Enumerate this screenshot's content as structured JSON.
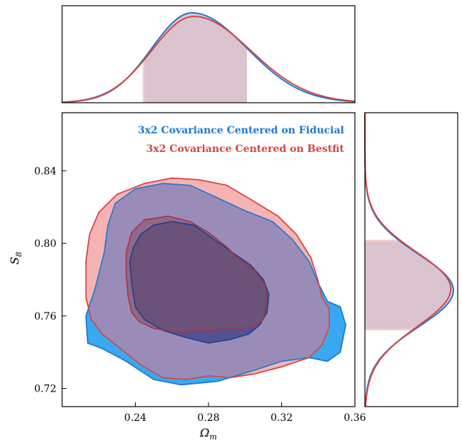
{
  "colors": {
    "fiducial": "#1f78d1",
    "fiducial_fill": "#3aa8f0",
    "bestfit": "#d64545",
    "bestfit_fill": "#f4a6a6",
    "overlap_outer": "#9a8cb8",
    "overlap_inner": "#6b5278",
    "marginal_band": "#d7c2d0"
  },
  "chart_data": [
    {
      "type": "line",
      "panel": "top-marginal",
      "xlim": [
        0.2,
        0.36
      ],
      "series": [
        {
          "name": "3x2 Covariance Centered on Fiducial",
          "peak_x": 0.271,
          "sigma_left": 0.022,
          "sigma_right": 0.03,
          "peak": 1.0,
          "band": [
            0.245,
            0.301
          ]
        },
        {
          "name": "3x2 Covariance Centered on Bestfit",
          "peak_x": 0.272,
          "sigma_left": 0.023,
          "sigma_right": 0.031,
          "peak": 0.96,
          "band": [
            0.244,
            0.301
          ]
        }
      ]
    },
    {
      "type": "scatter",
      "panel": "joint-contours",
      "xlabel": "Ω",
      "xlabel_sub": "m",
      "ylabel": "S",
      "ylabel_sub": "8",
      "xlim": [
        0.2,
        0.36
      ],
      "ylim": [
        0.71,
        0.872
      ],
      "xticks": [
        "0.24",
        "0.28",
        "0.32",
        "0.36"
      ],
      "xtick_values": [
        0.24,
        0.28,
        0.32,
        0.36
      ],
      "yticks": [
        "0.72",
        "0.76",
        "0.80",
        "0.84"
      ],
      "ytick_values": [
        0.72,
        0.76,
        0.8,
        0.84
      ],
      "legend_position": "top-right",
      "legend": [
        {
          "label": "3x2 Covariance Centered on Fiducial",
          "series": "fiducial"
        },
        {
          "label": "3x2 Covariance Centered on Bestfit",
          "series": "bestfit"
        }
      ],
      "contours": {
        "fiducial": {
          "outer": [
            [
              0.214,
              0.745
            ],
            [
              0.213,
              0.76
            ],
            [
              0.218,
              0.775
            ],
            [
              0.223,
              0.795
            ],
            [
              0.225,
              0.81
            ],
            [
              0.229,
              0.822
            ],
            [
              0.24,
              0.83
            ],
            [
              0.255,
              0.833
            ],
            [
              0.27,
              0.832
            ],
            [
              0.285,
              0.825
            ],
            [
              0.3,
              0.818
            ],
            [
              0.315,
              0.812
            ],
            [
              0.326,
              0.802
            ],
            [
              0.335,
              0.79
            ],
            [
              0.34,
              0.778
            ],
            [
              0.345,
              0.768
            ],
            [
              0.352,
              0.765
            ],
            [
              0.355,
              0.755
            ],
            [
              0.352,
              0.74
            ],
            [
              0.345,
              0.735
            ],
            [
              0.335,
              0.737
            ],
            [
              0.32,
              0.735
            ],
            [
              0.305,
              0.73
            ],
            [
              0.285,
              0.724
            ],
            [
              0.265,
              0.722
            ],
            [
              0.25,
              0.725
            ],
            [
              0.235,
              0.735
            ],
            [
              0.222,
              0.742
            ]
          ],
          "inner": [
            [
              0.237,
              0.79
            ],
            [
              0.238,
              0.778
            ],
            [
              0.24,
              0.765
            ],
            [
              0.245,
              0.758
            ],
            [
              0.255,
              0.752
            ],
            [
              0.268,
              0.748
            ],
            [
              0.28,
              0.745
            ],
            [
              0.292,
              0.747
            ],
            [
              0.302,
              0.75
            ],
            [
              0.308,
              0.755
            ],
            [
              0.312,
              0.762
            ],
            [
              0.313,
              0.772
            ],
            [
              0.31,
              0.78
            ],
            [
              0.303,
              0.788
            ],
            [
              0.293,
              0.795
            ],
            [
              0.282,
              0.803
            ],
            [
              0.272,
              0.81
            ],
            [
              0.26,
              0.812
            ],
            [
              0.25,
              0.81
            ],
            [
              0.243,
              0.805
            ],
            [
              0.239,
              0.798
            ]
          ]
        },
        "bestfit": {
          "outer": [
            [
              0.213,
              0.77
            ],
            [
              0.213,
              0.79
            ],
            [
              0.215,
              0.805
            ],
            [
              0.22,
              0.817
            ],
            [
              0.23,
              0.827
            ],
            [
              0.245,
              0.833
            ],
            [
              0.26,
              0.836
            ],
            [
              0.275,
              0.835
            ],
            [
              0.29,
              0.832
            ],
            [
              0.305,
              0.823
            ],
            [
              0.318,
              0.815
            ],
            [
              0.328,
              0.805
            ],
            [
              0.336,
              0.792
            ],
            [
              0.34,
              0.779
            ],
            [
              0.342,
              0.77
            ],
            [
              0.346,
              0.764
            ],
            [
              0.346,
              0.754
            ],
            [
              0.342,
              0.744
            ],
            [
              0.335,
              0.737
            ],
            [
              0.32,
              0.732
            ],
            [
              0.305,
              0.728
            ],
            [
              0.292,
              0.726
            ],
            [
              0.28,
              0.727
            ],
            [
              0.268,
              0.725
            ],
            [
              0.255,
              0.726
            ],
            [
              0.243,
              0.733
            ],
            [
              0.232,
              0.742
            ],
            [
              0.222,
              0.75
            ],
            [
              0.216,
              0.758
            ]
          ],
          "inner": [
            [
              0.235,
              0.795
            ],
            [
              0.235,
              0.783
            ],
            [
              0.236,
              0.771
            ],
            [
              0.238,
              0.762
            ],
            [
              0.242,
              0.757
            ],
            [
              0.25,
              0.753
            ],
            [
              0.265,
              0.751
            ],
            [
              0.28,
              0.752
            ],
            [
              0.295,
              0.753
            ],
            [
              0.305,
              0.754
            ],
            [
              0.31,
              0.758
            ],
            [
              0.312,
              0.768
            ],
            [
              0.311,
              0.777
            ],
            [
              0.305,
              0.785
            ],
            [
              0.298,
              0.79
            ],
            [
              0.29,
              0.798
            ],
            [
              0.28,
              0.806
            ],
            [
              0.27,
              0.812
            ],
            [
              0.258,
              0.815
            ],
            [
              0.245,
              0.813
            ],
            [
              0.238,
              0.806
            ]
          ]
        }
      }
    },
    {
      "type": "line",
      "panel": "right-marginal",
      "ylim": [
        0.71,
        0.872
      ],
      "series": [
        {
          "name": "3x2 Covariance Centered on Fiducial",
          "peak_y": 0.774,
          "sigma_low": 0.02,
          "sigma_high": 0.02,
          "peak": 1.0,
          "band": [
            0.753,
            0.801
          ]
        },
        {
          "name": "3x2 Covariance Centered on Bestfit",
          "peak_y": 0.775,
          "sigma_low": 0.021,
          "sigma_high": 0.02,
          "peak": 0.97,
          "band": [
            0.752,
            0.802
          ]
        }
      ]
    }
  ]
}
